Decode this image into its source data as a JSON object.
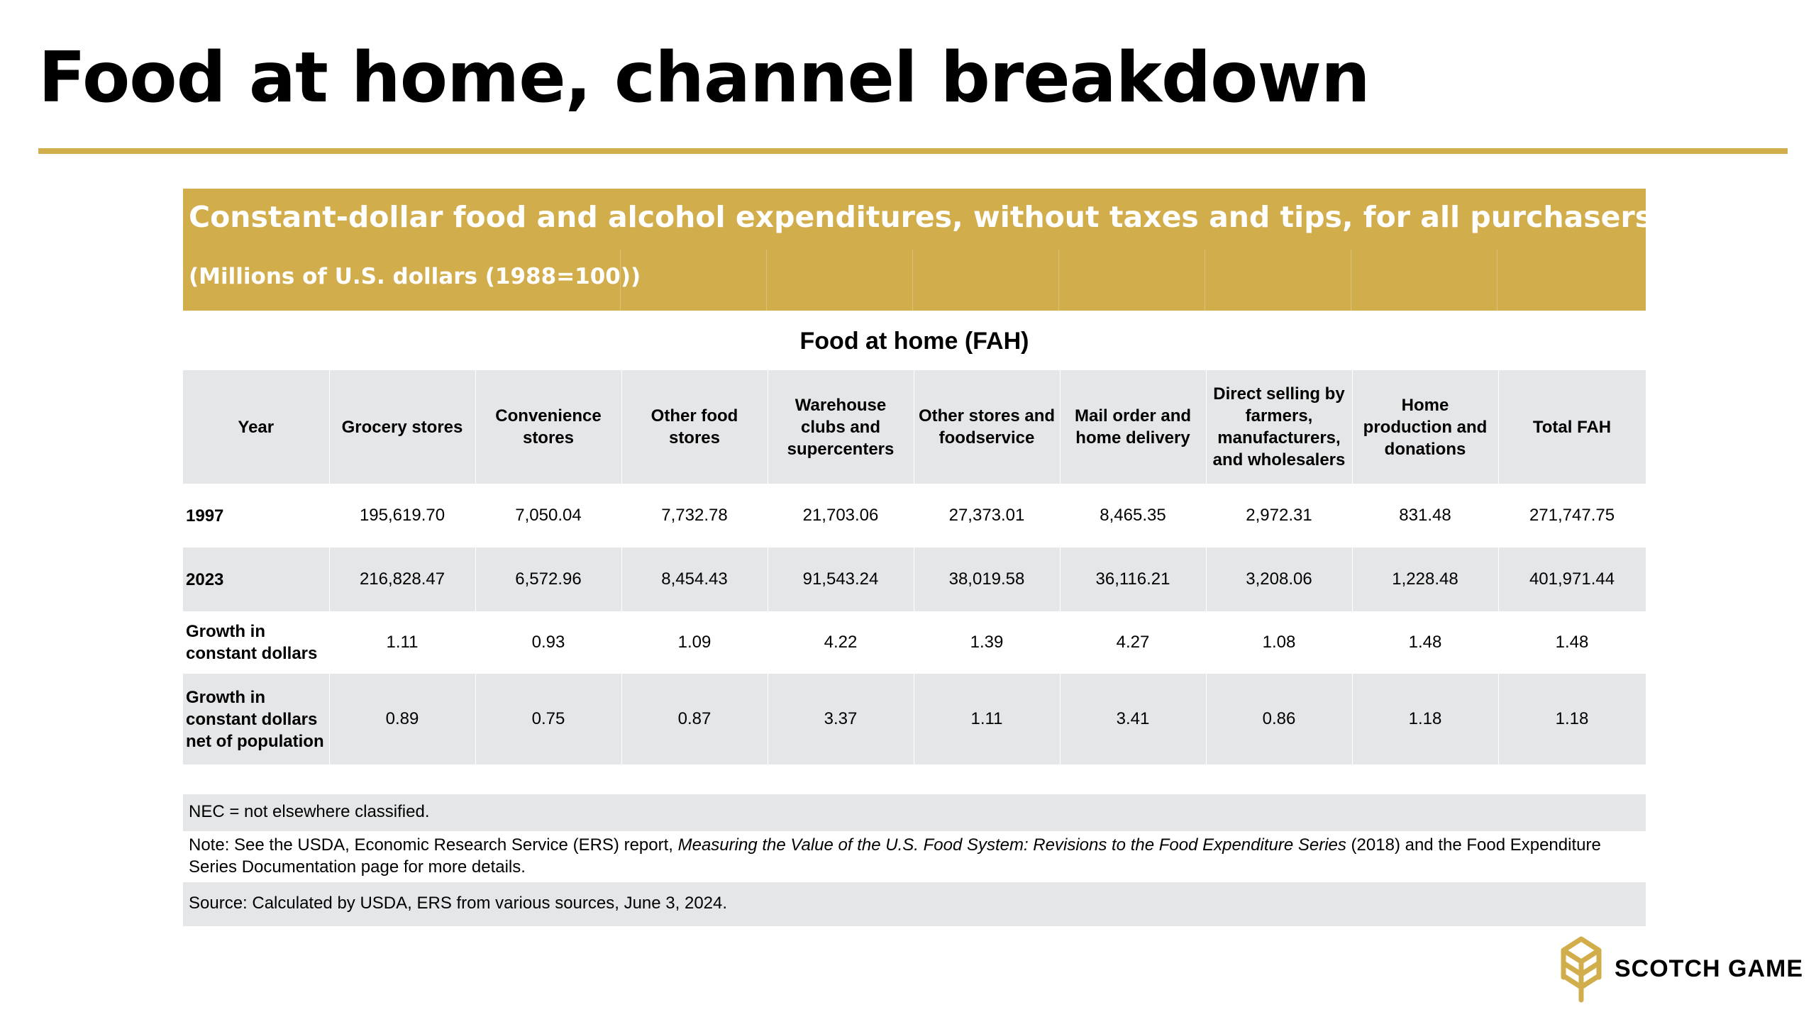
{
  "title": "Food at home, channel breakdown",
  "banner": {
    "title": "Constant-dollar food and alcohol expenditures, without taxes and tips, for all purchasers",
    "subtitle": "(Millions of U.S. dollars (1988=100))"
  },
  "section_title": "Food at home (FAH)",
  "table": {
    "headers": [
      "Year",
      "Grocery stores",
      "Convenience stores",
      "Other food stores",
      "Warehouse clubs and supercenters",
      "Other stores and foodservice",
      "Mail order and home delivery",
      "Direct selling by farmers, manufacturers, and wholesalers",
      "Home production and donations",
      "Total FAH"
    ],
    "rows": [
      {
        "label": "1997",
        "values": [
          "195,619.70",
          "7,050.04",
          "7,732.78",
          "21,703.06",
          "27,373.01",
          "8,465.35",
          "2,972.31",
          "831.48",
          "271,747.75"
        ]
      },
      {
        "label": "2023",
        "values": [
          "216,828.47",
          "6,572.96",
          "8,454.43",
          "91,543.24",
          "38,019.58",
          "36,116.21",
          "3,208.06",
          "1,228.48",
          "401,971.44"
        ]
      },
      {
        "label": "Growth in constant dollars",
        "values": [
          "1.11",
          "0.93",
          "1.09",
          "4.22",
          "1.39",
          "4.27",
          "1.08",
          "1.48",
          "1.48"
        ]
      },
      {
        "label": "Growth in constant dollars net of population",
        "values": [
          "0.89",
          "0.75",
          "0.87",
          "3.37",
          "1.11",
          "3.41",
          "0.86",
          "1.18",
          "1.18"
        ]
      }
    ]
  },
  "notes": {
    "nec": "NEC = not elsewhere classified.",
    "note_prefix": "Note: See the USDA, Economic Research Service (ERS) report, ",
    "note_report": "Measuring the Value of the U.S. Food System: Revisions to the Food Expenditure Series",
    "note_suffix": " (2018) and the Food Expenditure Series Documentation page for more details.",
    "source": "Source: Calculated by USDA, ERS from various sources, June 3, 2024."
  },
  "logo": {
    "text": "SCOTCH GAME",
    "icon": "wheat-logo-icon"
  },
  "colors": {
    "accent": "#d1ad4c",
    "row_shade": "#e5e6e8"
  }
}
